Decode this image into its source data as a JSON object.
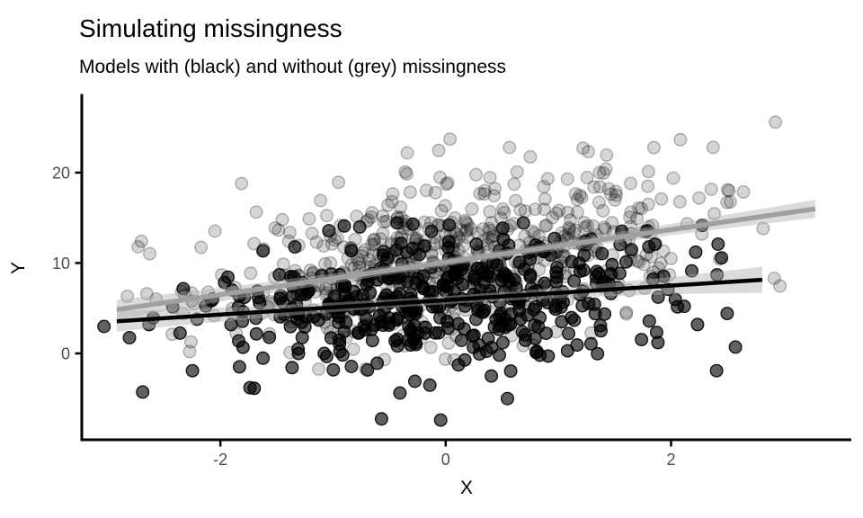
{
  "page": {
    "background": "#ffffff"
  },
  "chart_data": {
    "type": "scatter",
    "title": "Simulating missingness",
    "subtitle": "Models with (black) and without (grey) missingness",
    "xlabel": "X",
    "ylabel": "Y",
    "xlim": [
      -3.23,
      3.6
    ],
    "ylim": [
      -9.55,
      28.55
    ],
    "x_ticks": [
      -2,
      0,
      2
    ],
    "x_tick_labels": [
      "-2",
      "0",
      "2"
    ],
    "y_ticks": [
      0,
      10,
      20
    ],
    "y_tick_labels": [
      "0",
      "10",
      "20"
    ],
    "grid": false,
    "legend": "none",
    "theme": {
      "background": "#ffffff",
      "axis_line_color": "#000000",
      "tick_label_color": "#4d4d4d",
      "title_color": "#000000",
      "ribbon_fill": "#b0b0b0",
      "ribbon_opacity": 0.45,
      "point_radius": 6.8,
      "point_stroke_width": 1.4
    },
    "series": [
      {
        "name": "without missingness (grey points)",
        "role": "points",
        "appearance": {
          "fill": "#000000",
          "fill_opacity": 0.165,
          "stroke": "#000000",
          "stroke_opacity": 0.27
        },
        "n": 620,
        "seed": 7,
        "x_mean": 0.2,
        "x_sd": 1.08,
        "intercept": 10.1,
        "slope": 1.8,
        "resid_sd": 4.4,
        "resid_mix": {
          "p": 0.06,
          "scale": 1.8
        },
        "x_range": [
          -3.05,
          3.32
        ],
        "y_range": [
          -1.8,
          28.0
        ]
      },
      {
        "name": "with missingness (black points)",
        "role": "points",
        "appearance": {
          "fill": "#000000",
          "fill_opacity": 0.62,
          "stroke": "#000000",
          "stroke_opacity": 0.88
        },
        "n": 430,
        "seed": 13,
        "x_mean": -0.08,
        "x_sd": 1.02,
        "intercept": 5.9,
        "slope": 0.8,
        "resid_sd": 3.6,
        "resid_mix": {
          "p": 0.08,
          "scale": 1.8
        },
        "x_range": [
          -3.05,
          3.3
        ],
        "y_range": [
          -8.3,
          14.5
        ]
      }
    ],
    "regression_lines": [
      {
        "name": "fit without missingness (grey)",
        "color": "#a0a0a0",
        "width": 5.5,
        "x0": -2.92,
        "y0": 4.84,
        "x1": 3.28,
        "y1": 16.0,
        "intercept": 10.1,
        "slope": 1.8,
        "ribbon_halfwidth": {
          "left": 1.1,
          "mid": 0.45,
          "right": 1.0
        }
      },
      {
        "name": "fit with missingness (black)",
        "color": "#000000",
        "width": 4.5,
        "x0": -2.92,
        "y0": 3.56,
        "x1": 2.81,
        "y1": 8.15,
        "intercept": 5.9,
        "slope": 0.8,
        "ribbon_halfwidth": {
          "left": 1.15,
          "mid": 0.45,
          "right": 1.45
        }
      }
    ]
  }
}
